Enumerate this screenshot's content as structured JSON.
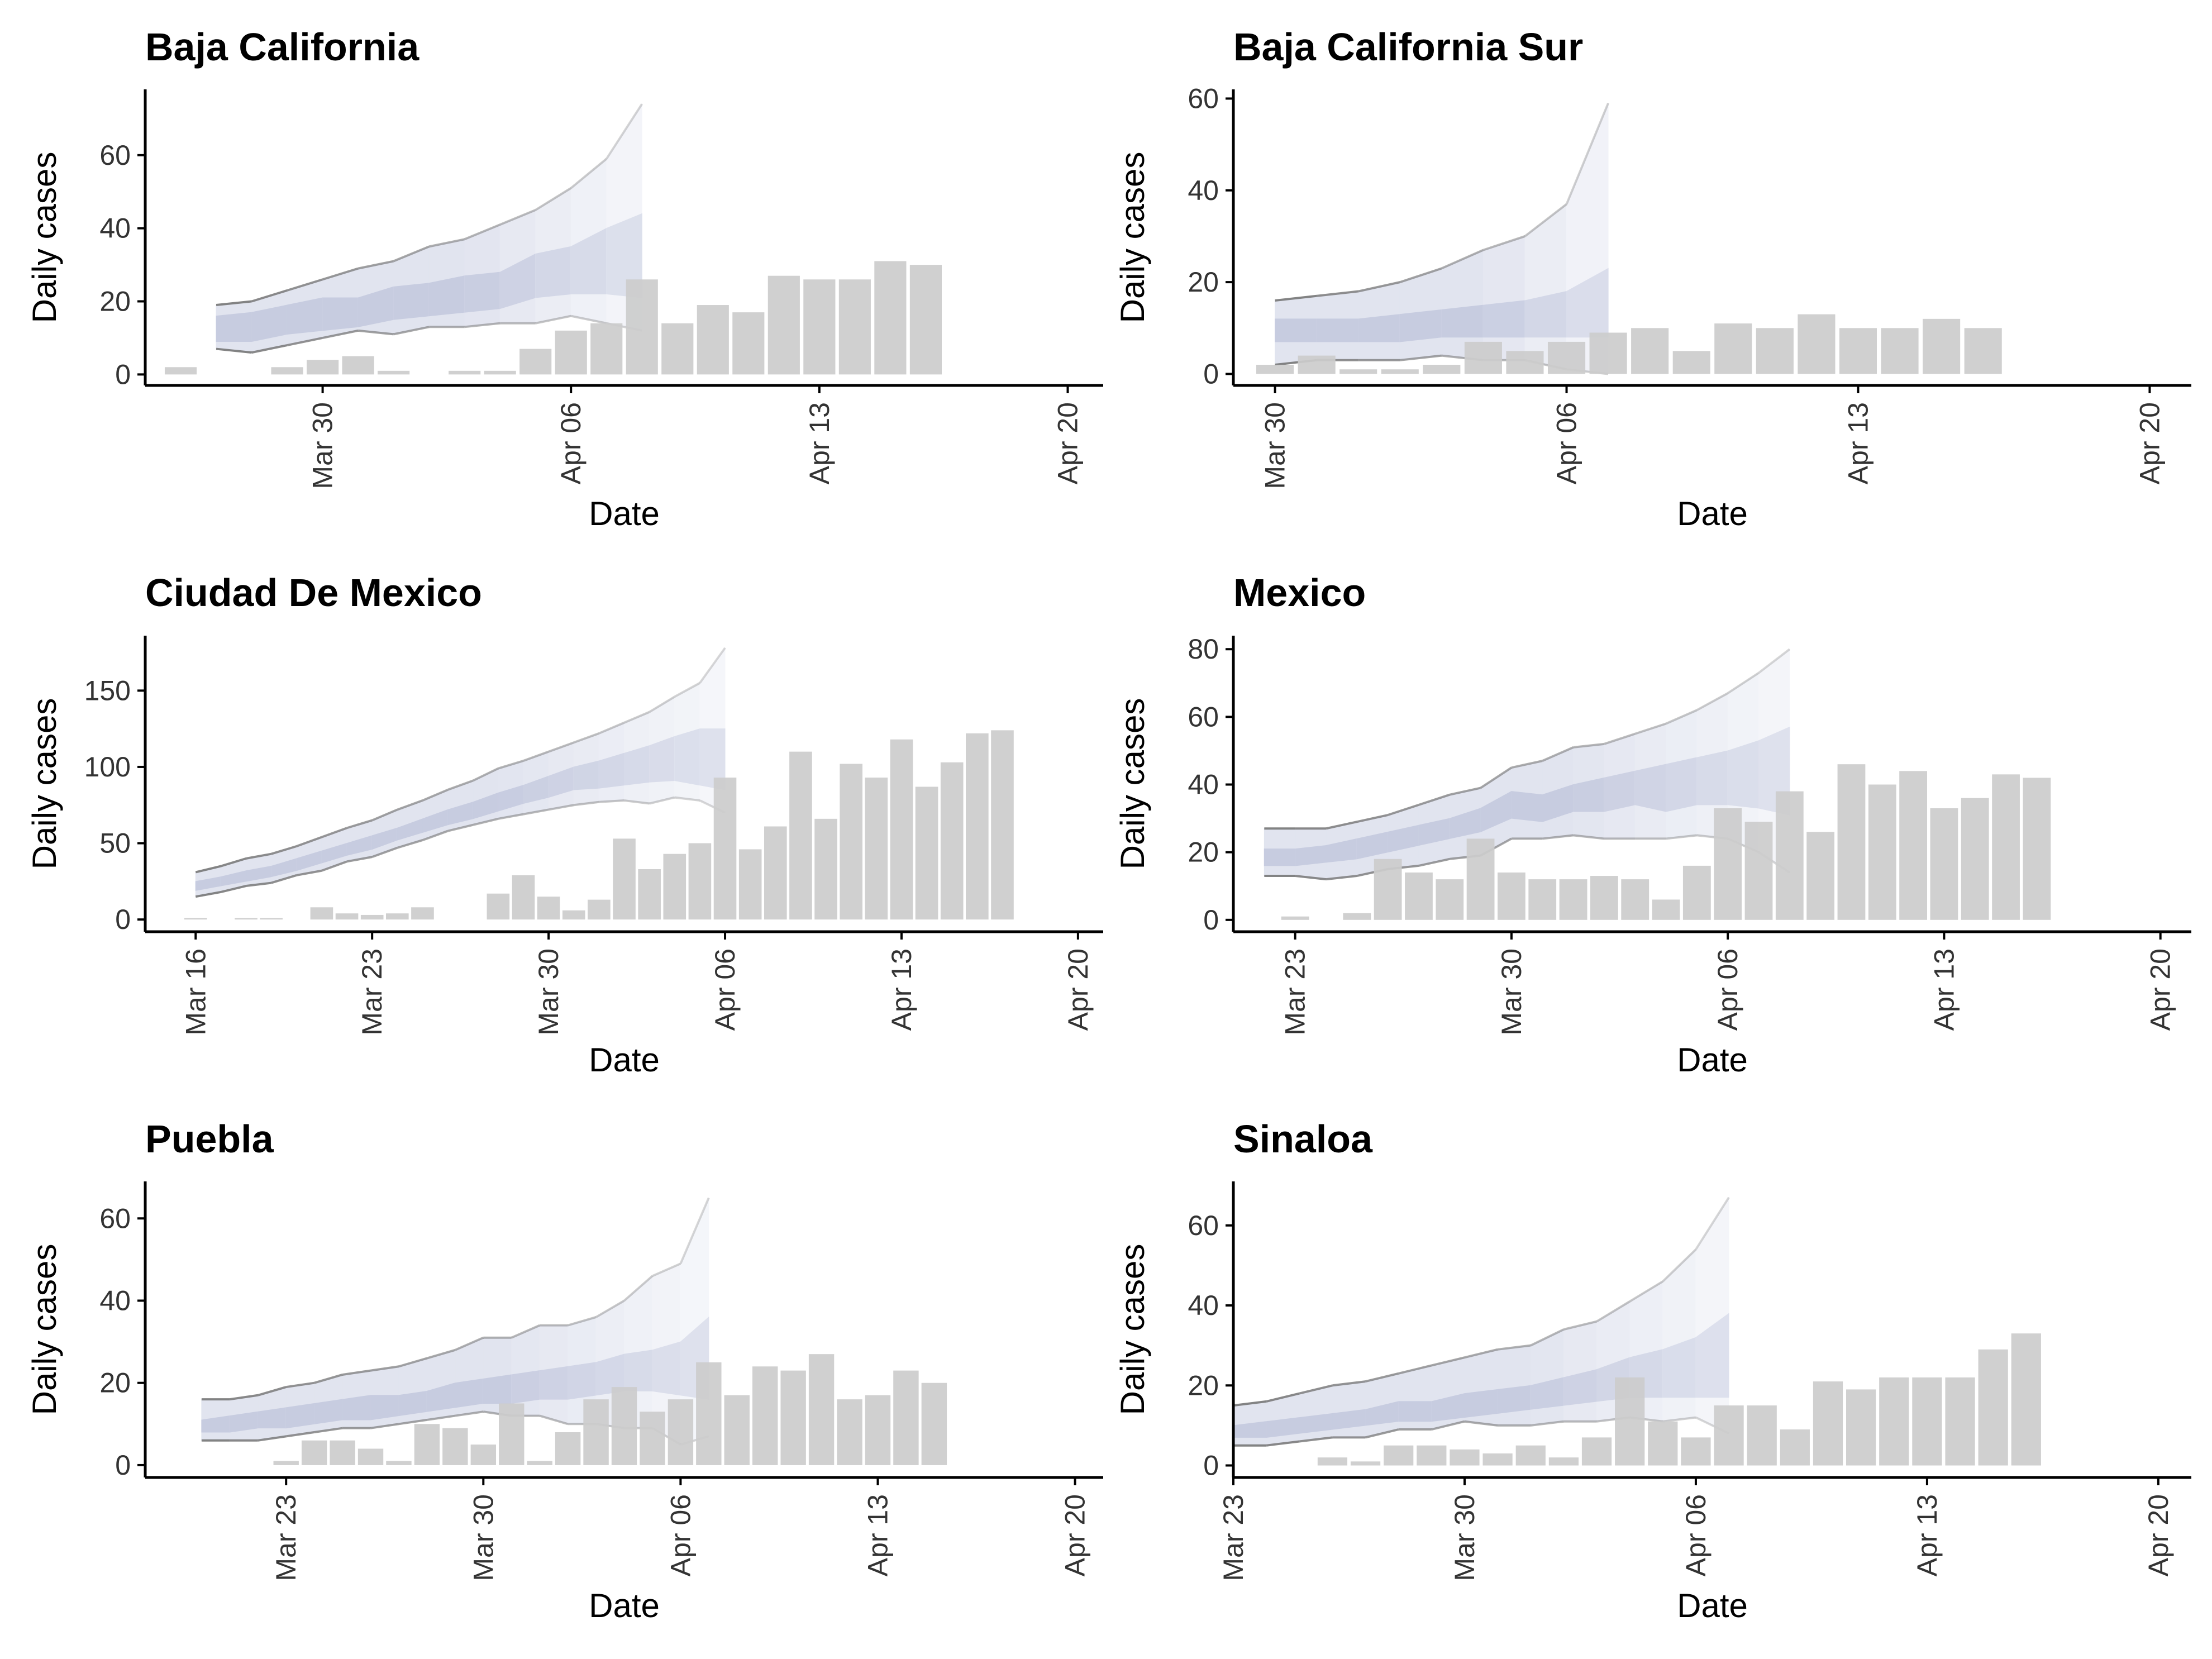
{
  "colors": {
    "bar": "#cccccc",
    "band_inner": "#c7cce0",
    "band_outer": "#e1e4ef",
    "band_fade": "#f7f8fb",
    "interval_line": "#777777"
  },
  "chart_data": [
    {
      "type": "bar",
      "title": "Baja California",
      "xlabel": "Date",
      "ylabel": "Daily cases",
      "xlim": [
        "2020-03-25",
        "2020-04-21"
      ],
      "ylim": [
        -3,
        78
      ],
      "yticks": [
        0,
        20,
        40,
        60
      ],
      "xticks": [
        {
          "date": "2020-03-30",
          "label": "Mar 30"
        },
        {
          "date": "2020-04-06",
          "label": "Apr 06"
        },
        {
          "date": "2020-04-13",
          "label": "Apr 13"
        },
        {
          "date": "2020-04-20",
          "label": "Apr 20"
        }
      ],
      "bars": {
        "start": "2020-03-26",
        "values": [
          2,
          0,
          0,
          2,
          4,
          5,
          1,
          0,
          1,
          1,
          7,
          12,
          14,
          26,
          14,
          19,
          17,
          27,
          26,
          26,
          31,
          30
        ]
      },
      "estimate": {
        "start": "2020-03-27",
        "upper90": [
          19,
          20,
          23,
          26,
          29,
          31,
          35,
          37,
          41,
          45,
          51,
          59,
          74
        ],
        "upper50": [
          16,
          17,
          19,
          21,
          21,
          24,
          25,
          27,
          28,
          33,
          35,
          40,
          44
        ],
        "lower50": [
          9,
          9,
          11,
          12,
          13,
          15,
          16,
          17,
          18,
          21,
          22,
          22,
          21
        ],
        "lower90": [
          7,
          6,
          8,
          10,
          12,
          11,
          13,
          13,
          14,
          14,
          16,
          14,
          12
        ]
      }
    },
    {
      "type": "bar",
      "title": "Baja California Sur",
      "xlabel": "Date",
      "ylabel": "Daily cases",
      "xlim": [
        "2020-03-29",
        "2020-04-21"
      ],
      "ylim": [
        -2.5,
        62
      ],
      "yticks": [
        0,
        20,
        40,
        60
      ],
      "xticks": [
        {
          "date": "2020-03-30",
          "label": "Mar 30"
        },
        {
          "date": "2020-04-06",
          "label": "Apr 06"
        },
        {
          "date": "2020-04-13",
          "label": "Apr 13"
        },
        {
          "date": "2020-04-20",
          "label": "Apr 20"
        }
      ],
      "bars": {
        "start": "2020-03-30",
        "values": [
          2,
          4,
          1,
          1,
          2,
          7,
          5,
          7,
          9,
          10,
          5,
          11,
          10,
          13,
          10,
          10,
          12,
          10
        ]
      },
      "estimate": {
        "start": "2020-03-30",
        "upper90": [
          16,
          17,
          18,
          20,
          23,
          27,
          30,
          37,
          59
        ],
        "upper50": [
          12,
          12,
          12,
          13,
          14,
          15,
          16,
          18,
          23
        ],
        "lower50": [
          7,
          7,
          7,
          7,
          8,
          8,
          8,
          8,
          8
        ],
        "lower90": [
          2,
          3,
          3,
          3,
          4,
          3,
          3,
          1,
          0
        ]
      }
    },
    {
      "type": "bar",
      "title": "Ciudad De Mexico",
      "xlabel": "Date",
      "ylabel": "Daily cases",
      "xlim": [
        "2020-03-14",
        "2020-04-21"
      ],
      "ylim": [
        -8,
        186
      ],
      "yticks": [
        0,
        50,
        100,
        150
      ],
      "xticks": [
        {
          "date": "2020-03-16",
          "label": "Mar 16"
        },
        {
          "date": "2020-03-23",
          "label": "Mar 23"
        },
        {
          "date": "2020-03-30",
          "label": "Mar 30"
        },
        {
          "date": "2020-04-06",
          "label": "Apr 06"
        },
        {
          "date": "2020-04-13",
          "label": "Apr 13"
        },
        {
          "date": "2020-04-20",
          "label": "Apr 20"
        }
      ],
      "bars": {
        "start": "2020-03-16",
        "values": [
          1,
          0,
          1,
          1,
          0,
          8,
          4,
          3,
          4,
          8,
          0,
          0,
          17,
          29,
          15,
          6,
          13,
          53,
          33,
          43,
          50,
          93,
          46,
          61,
          110,
          66,
          102,
          93,
          118,
          87,
          103,
          122,
          124
        ]
      },
      "estimate": {
        "start": "2020-03-16",
        "upper90": [
          31,
          35,
          40,
          43,
          48,
          54,
          60,
          65,
          72,
          78,
          85,
          91,
          99,
          104,
          110,
          116,
          122,
          129,
          136,
          146,
          155,
          178
        ],
        "upper50": [
          25,
          28,
          32,
          35,
          40,
          45,
          50,
          55,
          60,
          66,
          72,
          77,
          83,
          88,
          94,
          100,
          104,
          109,
          114,
          120,
          125,
          125
        ],
        "lower50": [
          19,
          22,
          25,
          28,
          32,
          37,
          42,
          46,
          52,
          57,
          62,
          66,
          71,
          76,
          80,
          85,
          86,
          88,
          90,
          91,
          88,
          85
        ],
        "lower90": [
          15,
          18,
          22,
          24,
          29,
          32,
          38,
          41,
          47,
          52,
          58,
          62,
          66,
          69,
          72,
          75,
          77,
          78,
          76,
          80,
          78,
          70
        ]
      }
    },
    {
      "type": "bar",
      "title": "Mexico",
      "xlabel": "Date",
      "ylabel": "Daily cases",
      "xlim": [
        "2020-03-21",
        "2020-04-21"
      ],
      "ylim": [
        -3.5,
        84
      ],
      "yticks": [
        0,
        20,
        40,
        60,
        80
      ],
      "xticks": [
        {
          "date": "2020-03-23",
          "label": "Mar 23"
        },
        {
          "date": "2020-03-30",
          "label": "Mar 30"
        },
        {
          "date": "2020-04-06",
          "label": "Apr 06"
        },
        {
          "date": "2020-04-13",
          "label": "Apr 13"
        },
        {
          "date": "2020-04-20",
          "label": "Apr 20"
        }
      ],
      "bars": {
        "start": "2020-03-23",
        "values": [
          1,
          0,
          2,
          18,
          14,
          12,
          24,
          14,
          12,
          12,
          13,
          12,
          6,
          16,
          33,
          29,
          38,
          26,
          46,
          40,
          44,
          33,
          36,
          43,
          42
        ]
      },
      "estimate": {
        "start": "2020-03-22",
        "upper90": [
          27,
          27,
          27,
          29,
          31,
          34,
          37,
          39,
          45,
          47,
          51,
          52,
          55,
          58,
          62,
          67,
          73,
          80
        ],
        "upper50": [
          21,
          21,
          22,
          24,
          26,
          28,
          30,
          33,
          38,
          37,
          40,
          42,
          44,
          46,
          48,
          50,
          53,
          57
        ],
        "lower50": [
          16,
          16,
          17,
          18,
          20,
          22,
          24,
          26,
          30,
          29,
          32,
          32,
          34,
          32,
          34,
          34,
          33,
          31
        ],
        "lower90": [
          13,
          13,
          12,
          13,
          15,
          16,
          18,
          19,
          24,
          24,
          25,
          24,
          24,
          24,
          25,
          24,
          20,
          14
        ]
      }
    },
    {
      "type": "bar",
      "title": "Puebla",
      "xlabel": "Date",
      "ylabel": "Daily cases",
      "xlim": [
        "2020-03-18",
        "2020-04-21"
      ],
      "ylim": [
        -3,
        69
      ],
      "yticks": [
        0,
        20,
        40,
        60
      ],
      "xticks": [
        {
          "date": "2020-03-23",
          "label": "Mar 23"
        },
        {
          "date": "2020-03-30",
          "label": "Mar 30"
        },
        {
          "date": "2020-04-06",
          "label": "Apr 06"
        },
        {
          "date": "2020-04-13",
          "label": "Apr 13"
        },
        {
          "date": "2020-04-20",
          "label": "Apr 20"
        }
      ],
      "bars": {
        "start": "2020-03-23",
        "values": [
          1,
          6,
          6,
          4,
          1,
          10,
          9,
          5,
          15,
          1,
          8,
          16,
          19,
          13,
          16,
          25,
          17,
          24,
          23,
          27,
          16,
          17,
          23,
          20
        ]
      },
      "estimate": {
        "start": "2020-03-20",
        "upper90": [
          16,
          16,
          17,
          19,
          20,
          22,
          23,
          24,
          26,
          28,
          31,
          31,
          34,
          34,
          36,
          40,
          46,
          49,
          65
        ],
        "upper50": [
          11,
          12,
          13,
          14,
          15,
          16,
          17,
          17,
          18,
          20,
          21,
          22,
          23,
          24,
          25,
          27,
          28,
          30,
          36
        ],
        "lower50": [
          8,
          8,
          9,
          9,
          10,
          11,
          11,
          12,
          13,
          14,
          15,
          15,
          16,
          16,
          17,
          18,
          18,
          17,
          16
        ],
        "lower90": [
          6,
          6,
          6,
          7,
          8,
          9,
          9,
          10,
          11,
          12,
          13,
          12,
          12,
          10,
          10,
          9,
          9,
          5,
          7
        ]
      }
    },
    {
      "type": "bar",
      "title": "Sinaloa",
      "xlabel": "Date",
      "ylabel": "Daily cases",
      "xlim": [
        "2020-03-23",
        "2020-04-21"
      ],
      "ylim": [
        -3,
        71
      ],
      "yticks": [
        0,
        20,
        40,
        60
      ],
      "xticks": [
        {
          "date": "2020-03-23",
          "label": "Mar 23"
        },
        {
          "date": "2020-03-30",
          "label": "Mar 30"
        },
        {
          "date": "2020-04-06",
          "label": "Apr 06"
        },
        {
          "date": "2020-04-13",
          "label": "Apr 13"
        },
        {
          "date": "2020-04-20",
          "label": "Apr 20"
        }
      ],
      "bars": {
        "start": "2020-03-26",
        "values": [
          2,
          1,
          5,
          5,
          4,
          3,
          5,
          2,
          7,
          22,
          11,
          7,
          15,
          15,
          9,
          21,
          19,
          22,
          22,
          22,
          29,
          33
        ]
      },
      "estimate": {
        "start": "2020-03-23",
        "upper90": [
          15,
          16,
          18,
          20,
          21,
          23,
          25,
          27,
          29,
          30,
          34,
          36,
          41,
          46,
          54,
          67
        ],
        "upper50": [
          10,
          11,
          12,
          13,
          14,
          16,
          16,
          18,
          19,
          20,
          22,
          24,
          27,
          29,
          32,
          38
        ],
        "lower50": [
          7,
          7,
          8,
          9,
          10,
          11,
          11,
          12,
          13,
          14,
          15,
          16,
          17,
          17,
          17,
          17
        ],
        "lower90": [
          5,
          5,
          6,
          7,
          7,
          9,
          9,
          11,
          10,
          10,
          11,
          11,
          12,
          11,
          12,
          8
        ]
      }
    }
  ]
}
